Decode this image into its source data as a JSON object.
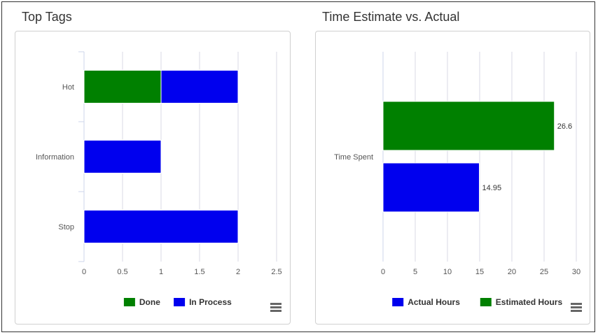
{
  "panels": [
    {
      "title": "Top Tags",
      "chart_data": {
        "type": "bar",
        "orientation": "horizontal",
        "stacked": true,
        "categories": [
          "Hot",
          "Information",
          "Stop"
        ],
        "series": [
          {
            "name": "Done",
            "color": "#008000",
            "values": [
              1,
              0,
              0
            ]
          },
          {
            "name": "In Process",
            "color": "#0000ee",
            "values": [
              1,
              1,
              2
            ]
          }
        ],
        "xlim": [
          0,
          2.5
        ],
        "xticks": [
          "0",
          "0.5",
          "1",
          "1.5",
          "2",
          "2.5"
        ],
        "grid": true,
        "legend_position": "bottom",
        "data_labels": false
      },
      "menu_icon": "hamburger-menu-icon"
    },
    {
      "title": "Time Estimate vs. Actual",
      "chart_data": {
        "type": "bar",
        "orientation": "horizontal",
        "stacked": false,
        "categories": [
          "Time Spent"
        ],
        "series": [
          {
            "name": "Estimated Hours",
            "color": "#008000",
            "values": [
              26.6
            ]
          },
          {
            "name": "Actual Hours",
            "color": "#0000ee",
            "values": [
              14.95
            ]
          }
        ],
        "legend_order": [
          "Actual Hours",
          "Estimated Hours"
        ],
        "xlim": [
          0,
          30
        ],
        "xticks": [
          "0",
          "5",
          "10",
          "15",
          "20",
          "25",
          "30"
        ],
        "grid": true,
        "legend_position": "bottom",
        "data_labels": true,
        "data_label_text": [
          "26.6",
          "14.95"
        ]
      },
      "menu_icon": "hamburger-menu-icon"
    }
  ]
}
